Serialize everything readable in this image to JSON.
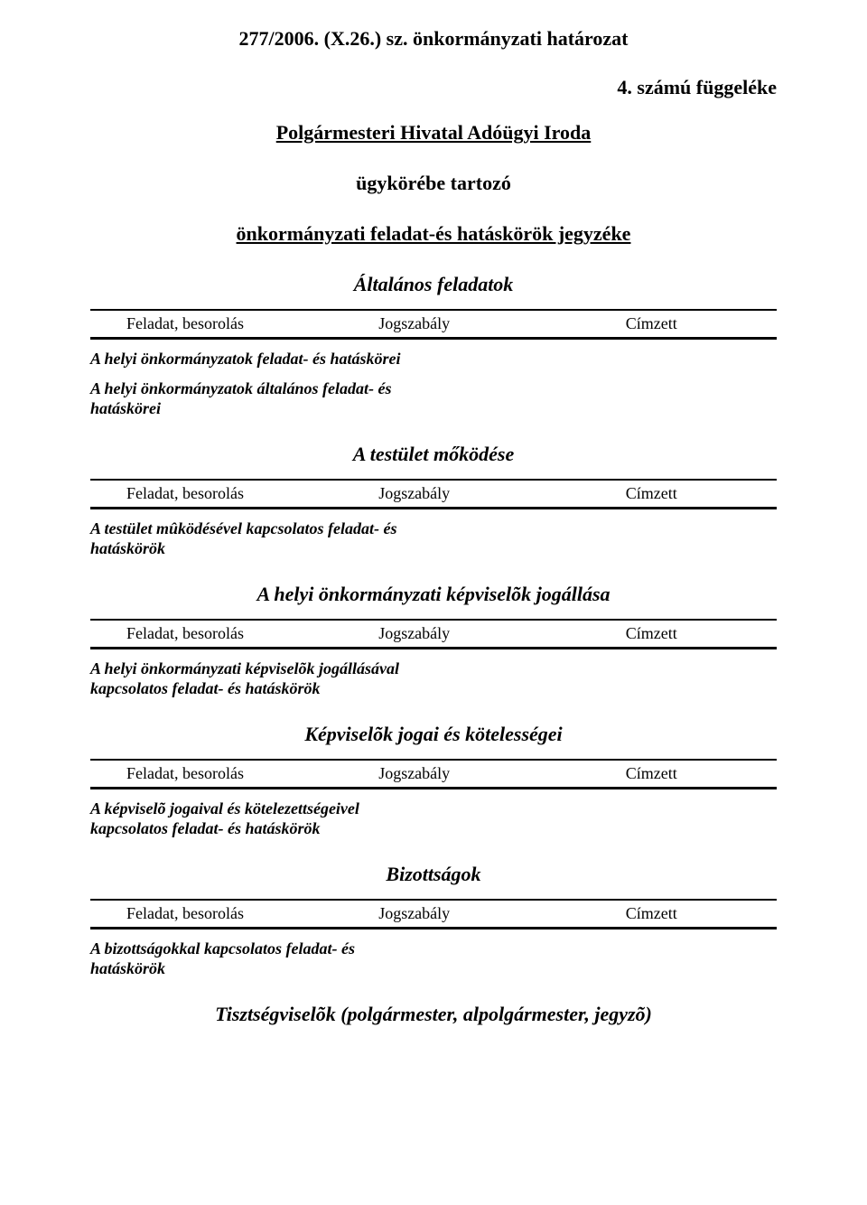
{
  "doc_title": "277/2006. (X.26.) sz. önkormányzati határozat",
  "appendix_label": "4. számú függeléke",
  "office_line": "Polgármesteri Hivatal Adóügyi Iroda",
  "scope_line": "ügykörébe tartozó",
  "registry_line": "önkormányzati feladat-és hatáskörök jegyzéke",
  "table_header": {
    "col1": "Feladat, besorolás",
    "col2": "Jogszabály",
    "col3": "Címzett"
  },
  "sections": [
    {
      "heading": "Általános feladatok",
      "items": [
        {
          "line1": " A helyi önkormányzatok feladat- és hatáskörei"
        },
        {
          "line1": " A helyi önkormányzatok általános feladat- és",
          "line2": "hatáskörei"
        }
      ]
    },
    {
      "heading": "A testület mőködése",
      "items": [
        {
          "line1": " A testület mûködésével kapcsolatos feladat- és",
          "line2": "hatáskörök"
        }
      ]
    },
    {
      "heading": "A helyi önkormányzati képviselõk jogállása",
      "items": [
        {
          "line1": " A helyi önkormányzati képviselõk jogállásával",
          "line2": "kapcsolatos feladat- és hatáskörök"
        }
      ]
    },
    {
      "heading": "Képviselõk jogai és kötelességei",
      "items": [
        {
          "line1": " A képviselõ jogaival és kötelezettségeivel",
          "line2": "kapcsolatos feladat- és hatáskörök"
        }
      ]
    },
    {
      "heading": "Bizottságok",
      "items": [
        {
          "line1": " A bizottságokkal kapcsolatos feladat- és",
          "line2": "hatáskörök"
        }
      ]
    },
    {
      "heading": "Tisztségviselõk (polgármester, alpolgármester, jegyzõ)",
      "items": []
    }
  ]
}
